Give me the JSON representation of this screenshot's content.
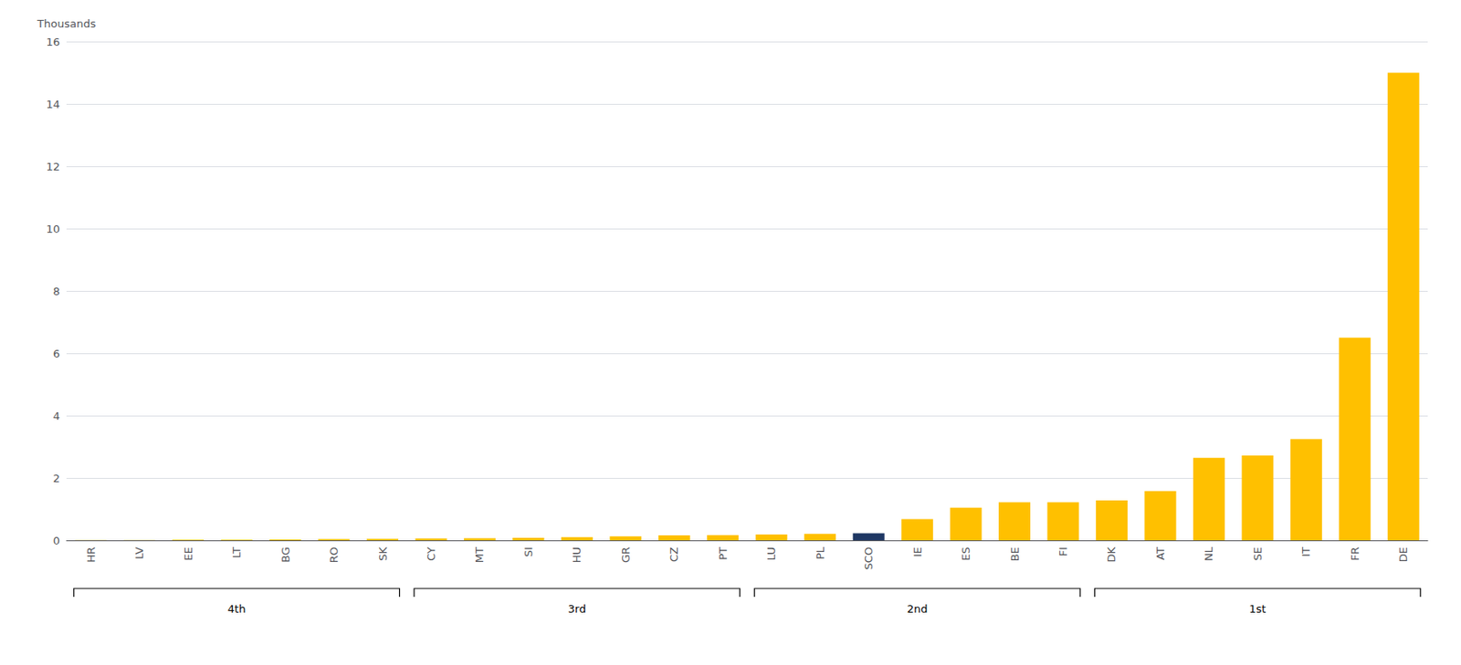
{
  "chart_data": {
    "type": "bar",
    "categories": [
      "HR",
      "LV",
      "EE",
      "LT",
      "BG",
      "RO",
      "SK",
      "CY",
      "MT",
      "SI",
      "HU",
      "GR",
      "CZ",
      "PT",
      "LU",
      "PL",
      "SCO",
      "IE",
      "ES",
      "BE",
      "FI",
      "DK",
      "AT",
      "NL",
      "SE",
      "IT",
      "FR",
      "DE"
    ],
    "values": [
      0.01,
      0.01,
      0.02,
      0.02,
      0.03,
      0.04,
      0.05,
      0.06,
      0.07,
      0.08,
      0.1,
      0.13,
      0.16,
      0.17,
      0.19,
      0.21,
      0.23,
      0.68,
      1.05,
      1.22,
      1.22,
      1.28,
      1.58,
      2.65,
      2.72,
      3.25,
      6.5,
      15.0
    ],
    "colors": [
      "#FFC000",
      "#FFC000",
      "#FFC000",
      "#FFC000",
      "#FFC000",
      "#FFC000",
      "#FFC000",
      "#FFC000",
      "#FFC000",
      "#FFC000",
      "#FFC000",
      "#FFC000",
      "#FFC000",
      "#FFC000",
      "#FFC000",
      "#FFC000",
      "#1F3864",
      "#FFC000",
      "#FFC000",
      "#FFC000",
      "#FFC000",
      "#FFC000",
      "#FFC000",
      "#FFC000",
      "#FFC000",
      "#FFC000",
      "#FFC000",
      "#FFC000"
    ],
    "ylabel": "Thousands",
    "ylim": [
      0,
      16
    ],
    "yticks": [
      0,
      2,
      4,
      6,
      8,
      10,
      12,
      14,
      16
    ],
    "grid": true,
    "groups": [
      {
        "label": "4th",
        "first": "HR",
        "last": "SK"
      },
      {
        "label": "3rd",
        "first": "CY",
        "last": "PT"
      },
      {
        "label": "2nd",
        "first": "LU",
        "last": "FI"
      },
      {
        "label": "1st",
        "first": "DK",
        "last": "DE"
      }
    ]
  }
}
